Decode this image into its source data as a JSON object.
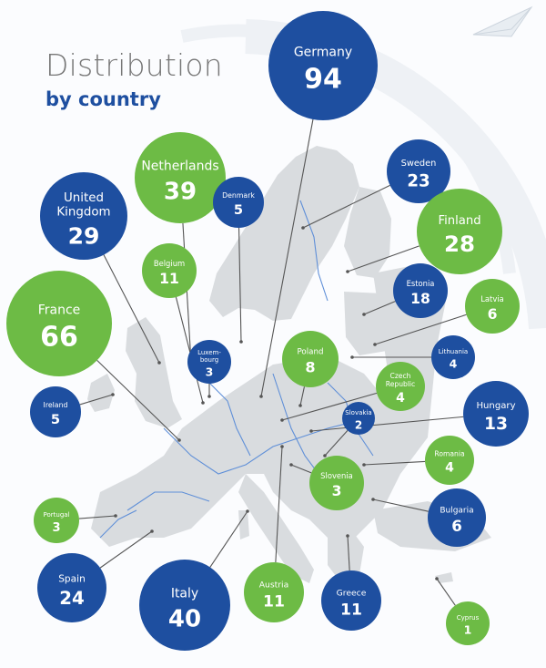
{
  "header": {
    "title": "Distribution",
    "subtitle": "by country"
  },
  "colors": {
    "blue": "#1e4fa0",
    "green": "#6dbb45",
    "map_land": "#d9dcdf",
    "river": "#5f8fd8",
    "leader": "#555555"
  },
  "icons": [
    "paper-plane-icon"
  ],
  "chart_data": {
    "type": "bubble",
    "title": "Distribution",
    "subtitle": "by country",
    "series": [
      {
        "values": [
          {
            "country": "Germany",
            "value": 94,
            "color": "blue"
          },
          {
            "country": "Sweden",
            "value": 23,
            "color": "blue"
          },
          {
            "country": "Netherlands",
            "value": 39,
            "color": "green"
          },
          {
            "country": "Denmark",
            "value": 5,
            "color": "blue"
          },
          {
            "country": "United Kingdom",
            "value": 29,
            "color": "blue"
          },
          {
            "country": "Finland",
            "value": 28,
            "color": "green"
          },
          {
            "country": "Belgium",
            "value": 11,
            "color": "green"
          },
          {
            "country": "Estonia",
            "value": 18,
            "color": "blue"
          },
          {
            "country": "Latvia",
            "value": 6,
            "color": "green"
          },
          {
            "country": "France",
            "value": 66,
            "color": "green"
          },
          {
            "country": "Luxembourg",
            "value": 3,
            "color": "blue"
          },
          {
            "country": "Poland",
            "value": 8,
            "color": "green"
          },
          {
            "country": "Lithuania",
            "value": 4,
            "color": "blue"
          },
          {
            "country": "Czech Republic",
            "value": 4,
            "color": "green"
          },
          {
            "country": "Ireland",
            "value": 5,
            "color": "blue"
          },
          {
            "country": "Hungary",
            "value": 13,
            "color": "blue"
          },
          {
            "country": "Slovakia",
            "value": 2,
            "color": "blue"
          },
          {
            "country": "Romania",
            "value": 4,
            "color": "green"
          },
          {
            "country": "Slovenia",
            "value": 3,
            "color": "green"
          },
          {
            "country": "Portugal",
            "value": 3,
            "color": "green"
          },
          {
            "country": "Bulgaria",
            "value": 6,
            "color": "blue"
          },
          {
            "country": "Spain",
            "value": 24,
            "color": "blue"
          },
          {
            "country": "Italy",
            "value": 40,
            "color": "blue"
          },
          {
            "country": "Austria",
            "value": 11,
            "color": "green"
          },
          {
            "country": "Greece",
            "value": 11,
            "color": "blue"
          },
          {
            "country": "Cyprus",
            "value": 1,
            "color": "green"
          }
        ]
      }
    ],
    "labels": {
      "Germany": [
        "Germany"
      ],
      "Sweden": [
        "Sweden"
      ],
      "Netherlands": [
        "Netherlands"
      ],
      "Denmark": [
        "Denmark"
      ],
      "United Kingdom": [
        "United",
        "Kingdom"
      ],
      "Finland": [
        "Finland"
      ],
      "Belgium": [
        "Belgium"
      ],
      "Estonia": [
        "Estonia"
      ],
      "Latvia": [
        "Latvia"
      ],
      "France": [
        "France"
      ],
      "Luxembourg": [
        "Luxem-",
        "bourg"
      ],
      "Poland": [
        "Poland"
      ],
      "Lithuania": [
        "Lithuania"
      ],
      "Czech Republic": [
        "Czech",
        "Republic"
      ],
      "Ireland": [
        "Ireland"
      ],
      "Hungary": [
        "Hungary"
      ],
      "Slovakia": [
        "Slovakia"
      ],
      "Romania": [
        "Romania"
      ],
      "Slovenia": [
        "Slovenia"
      ],
      "Portugal": [
        "Portugal"
      ],
      "Bulgaria": [
        "Bulgaria"
      ],
      "Spain": [
        "Spain"
      ],
      "Italy": [
        "Italy"
      ],
      "Austria": [
        "Austria"
      ],
      "Greece": [
        "Greece"
      ],
      "Cyprus": [
        "Cyprus"
      ]
    }
  }
}
